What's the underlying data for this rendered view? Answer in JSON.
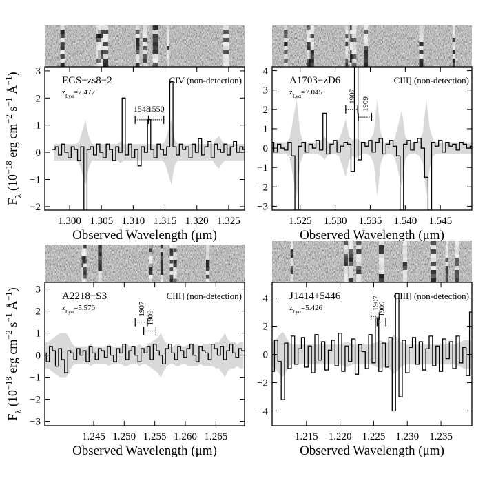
{
  "chart_data": [
    {
      "type": "step",
      "name": "EGS−zs8−2",
      "redshift": [
        {
          "text": "z"
        },
        {
          "text": "Lyα",
          "shift": "sub"
        },
        {
          "text": "=7.477"
        }
      ],
      "line_label": "CIV (non-detection)",
      "xlabel": "Observed Wavelength (μm)",
      "ylabel": [
        {
          "text": "F"
        },
        {
          "text": "λ",
          "shift": "sub"
        },
        {
          "text": " (10"
        },
        {
          "text": "−18",
          "shift": "sup"
        },
        {
          "text": " erg cm"
        },
        {
          "text": "−2",
          "shift": "sup"
        },
        {
          "text": " s"
        },
        {
          "text": "−1",
          "shift": "sup"
        },
        {
          "text": " Å"
        },
        {
          "text": "−1",
          "shift": "sup"
        },
        {
          "text": ")"
        }
      ],
      "xlim": [
        1.2961,
        1.3275
      ],
      "ylim": [
        -2.13,
        3.15
      ],
      "xticks": [
        {
          "value": 1.3,
          "label": "1.300"
        },
        {
          "value": 1.305,
          "label": "1.305"
        },
        {
          "value": 1.31,
          "label": "1.310"
        },
        {
          "value": 1.315,
          "label": "1.315"
        },
        {
          "value": 1.32,
          "label": "1.320"
        },
        {
          "value": 1.325,
          "label": "1.325"
        }
      ],
      "yticks": [
        {
          "value": -2,
          "label": "−2"
        },
        {
          "value": -1,
          "label": "−1"
        },
        0,
        1,
        2,
        3
      ],
      "marker_label_orientation": "horizontal",
      "markers": [
        {
          "label": "1548",
          "range": [
            1.3103,
            1.3124
          ],
          "y": 1.2
        },
        {
          "label": "1550",
          "range": [
            1.3124,
            1.3148
          ],
          "y": 1.2
        }
      ],
      "x": [
        1.2975,
        1.298,
        1.2985,
        1.299,
        1.2995,
        1.3,
        1.3005,
        1.301,
        1.3015,
        1.302,
        1.3025,
        1.303,
        1.3035,
        1.304,
        1.3045,
        1.305,
        1.3055,
        1.306,
        1.3065,
        1.307,
        1.3075,
        1.308,
        1.3085,
        1.309,
        1.3095,
        1.31,
        1.3105,
        1.311,
        1.3115,
        1.312,
        1.3125,
        1.313,
        1.3135,
        1.314,
        1.3145,
        1.315,
        1.3155,
        1.316,
        1.3165,
        1.317,
        1.3175,
        1.318,
        1.3185,
        1.319,
        1.3195,
        1.32,
        1.3205,
        1.321,
        1.3215,
        1.322,
        1.3225,
        1.323,
        1.3235,
        1.324,
        1.3245,
        1.325,
        1.3255,
        1.326,
        1.3265,
        1.327,
        1.3275
      ],
      "values": [
        0.1,
        0.2,
        -0.1,
        0.3,
        0,
        -0.2,
        0.2,
        0.1,
        -0.3,
        0.2,
        -2.2,
        0.1,
        0.2,
        -0.1,
        0.3,
        0,
        -0.2,
        0.3,
        0.1,
        -0.3,
        0.2,
        0,
        2,
        -0.1,
        0.3,
        -0.2,
        0.1,
        -0.5,
        0.2,
        0,
        1.2,
        0.1,
        -0.2,
        0.3,
        0.1,
        -0.1,
        0.2,
        2.6,
        0.2,
        -0.1,
        0.3,
        0.1,
        0.2,
        -0.2,
        0.3,
        0,
        0.5,
        -0.1,
        0.2,
        0.4,
        -0.2,
        0.3,
        0.1,
        0,
        0.3,
        -0.1,
        0.2,
        0.4,
        0,
        0.2,
        0.1
      ],
      "error": [
        0.3,
        0.3,
        0.3,
        0.3,
        0.3,
        0.3,
        0.3,
        0.3,
        0.4,
        0.8,
        1.2,
        0.6,
        0.3,
        0.3,
        0.3,
        0.3,
        0.3,
        0.3,
        0.3,
        0.3,
        0.3,
        0.4,
        0.3,
        0.3,
        0.3,
        0.3,
        0.3,
        0.3,
        0.3,
        0.3,
        0.3,
        0.3,
        0.3,
        0.3,
        0.3,
        0.4,
        0.8,
        1.2,
        0.5,
        0.3,
        0.3,
        0.3,
        0.3,
        0.3,
        0.3,
        0.3,
        0.3,
        0.3,
        0.3,
        0.3,
        0.3,
        0.5,
        0.6,
        0.4,
        0.3,
        0.3,
        0.3,
        0.3,
        0.3,
        0.3,
        0.3
      ],
      "color": "#000000",
      "error_color": "#d9d9d9"
    },
    {
      "type": "step",
      "name": "A1703−zD6",
      "redshift": [
        {
          "text": "z"
        },
        {
          "text": "Lyα",
          "shift": "sub"
        },
        {
          "text": "=7.045"
        }
      ],
      "line_label": "CIII] (non-detection)",
      "xlabel": "Observed Wavelength (μm)",
      "xlim": [
        1.521,
        1.5495
      ],
      "ylim": [
        -3.2,
        4.2
      ],
      "xticks": [
        {
          "value": 1.525,
          "label": "1.525"
        },
        {
          "value": 1.53,
          "label": "1.530"
        },
        {
          "value": 1.535,
          "label": "1.535"
        },
        {
          "value": 1.54,
          "label": "1.540"
        },
        {
          "value": 1.545,
          "label": "1.545"
        }
      ],
      "yticks": [
        {
          "value": -3,
          "label": "−3"
        },
        {
          "value": -2,
          "label": "−2"
        },
        {
          "value": -1,
          "label": "−1"
        },
        0,
        1,
        2,
        3,
        4
      ],
      "marker_label_orientation": "vertical",
      "markers": [
        {
          "label": "1907",
          "range": [
            1.5315,
            1.5332
          ],
          "y": 2.0
        },
        {
          "label": "1909",
          "range": [
            1.5333,
            1.5352
          ],
          "y": 1.6
        }
      ],
      "x": [
        1.5205,
        1.521,
        1.5215,
        1.522,
        1.5225,
        1.523,
        1.5235,
        1.524,
        1.5245,
        1.525,
        1.5255,
        1.526,
        1.5265,
        1.527,
        1.5275,
        1.528,
        1.5285,
        1.529,
        1.5295,
        1.53,
        1.5305,
        1.531,
        1.5315,
        1.532,
        1.5325,
        1.533,
        1.5335,
        1.534,
        1.5345,
        1.535,
        1.5355,
        1.536,
        1.5365,
        1.537,
        1.5375,
        1.538,
        1.5385,
        1.539,
        1.5395,
        1.54,
        1.5405,
        1.541,
        1.5415,
        1.542,
        1.5425,
        1.543,
        1.5435,
        1.544,
        1.5445,
        1.545,
        1.5455,
        1.546,
        1.5465,
        1.547,
        1.5475,
        1.548,
        1.5485,
        1.549,
        1.5495
      ],
      "values": [
        0.1,
        0.3,
        -0.2,
        0.2,
        0,
        -0.1,
        0.3,
        -0.4,
        -3.2,
        0.1,
        0.3,
        -0.2,
        0.2,
        0,
        0.4,
        -0.1,
        1.8,
        -0.3,
        0.2,
        0.4,
        -0.2,
        0.1,
        0.3,
        0.2,
        -1.2,
        4.2,
        -0.6,
        0.3,
        0.1,
        0.4,
        -0.2,
        0.3,
        0.5,
        -0.3,
        0.2,
        0.4,
        0.1,
        -0.4,
        -3.2,
        0.2,
        0.4,
        -0.1,
        0.3,
        0.5,
        0,
        -1.5,
        -3.2,
        0.3,
        0.1,
        0.4,
        -0.2,
        0.3,
        0.1,
        0.2,
        -0.1,
        0.3,
        0.2,
        0,
        0.1
      ],
      "error": [
        0.3,
        0.3,
        0.3,
        0.3,
        0.3,
        0.3,
        0.5,
        1.5,
        2.5,
        0.8,
        0.3,
        0.3,
        0.3,
        0.3,
        0.3,
        0.4,
        0.6,
        0.3,
        0.3,
        0.3,
        0.4,
        0.9,
        1.5,
        0.6,
        0.4,
        0.5,
        0.4,
        0.3,
        0.3,
        0.4,
        0.8,
        2.5,
        0.8,
        0.3,
        0.3,
        0.3,
        0.5,
        1.2,
        2.0,
        0.6,
        0.3,
        0.3,
        0.3,
        0.4,
        0.8,
        2.5,
        1.0,
        0.4,
        0.3,
        0.3,
        0.3,
        0.3,
        0.3,
        0.3,
        0.3,
        0.3,
        0.3,
        0.3,
        0.3
      ],
      "color": "#000000",
      "error_color": "#d9d9d9"
    },
    {
      "type": "step",
      "name": "A2218−S3",
      "redshift": [
        {
          "text": "z"
        },
        {
          "text": "Lyα",
          "shift": "sub"
        },
        {
          "text": "=5.576"
        }
      ],
      "line_label": "CIII] (non-detection)",
      "xlabel": "Observed Wavelength (μm)",
      "ylabel": [
        {
          "text": "F"
        },
        {
          "text": "λ",
          "shift": "sub"
        },
        {
          "text": " (10"
        },
        {
          "text": "−18",
          "shift": "sup"
        },
        {
          "text": " erg cm"
        },
        {
          "text": "−2",
          "shift": "sup"
        },
        {
          "text": " s"
        },
        {
          "text": "−1",
          "shift": "sup"
        },
        {
          "text": " Å"
        },
        {
          "text": "−1",
          "shift": "sup"
        },
        {
          "text": ")"
        }
      ],
      "xlim": [
        1.237,
        1.2697
      ],
      "ylim": [
        -3.2,
        3.3
      ],
      "xticks": [
        {
          "value": 1.245,
          "label": "1.245"
        },
        {
          "value": 1.25,
          "label": "1.250"
        },
        {
          "value": 1.255,
          "label": "1.255"
        },
        {
          "value": 1.26,
          "label": "1.260"
        },
        {
          "value": 1.265,
          "label": "1.265"
        }
      ],
      "yticks": [
        {
          "value": -3,
          "label": "−3"
        },
        {
          "value": -2,
          "label": "−2"
        },
        {
          "value": -1,
          "label": "−1"
        },
        0,
        1,
        2,
        3
      ],
      "marker_label_orientation": "vertical",
      "markers": [
        {
          "label": "1907",
          "range": [
            1.2518,
            1.2538
          ],
          "y": 1.5
        },
        {
          "label": "1909",
          "range": [
            1.2532,
            1.2552
          ],
          "y": 1.1
        }
      ],
      "x": [
        1.237,
        1.2375,
        1.238,
        1.2385,
        1.239,
        1.2395,
        1.24,
        1.2405,
        1.241,
        1.2415,
        1.242,
        1.2425,
        1.243,
        1.2435,
        1.244,
        1.2445,
        1.245,
        1.2455,
        1.246,
        1.2465,
        1.247,
        1.2475,
        1.248,
        1.2485,
        1.249,
        1.2495,
        1.25,
        1.2505,
        1.251,
        1.2515,
        1.252,
        1.2525,
        1.253,
        1.2535,
        1.254,
        1.2545,
        1.255,
        1.2555,
        1.256,
        1.2565,
        1.257,
        1.2575,
        1.258,
        1.2585,
        1.259,
        1.2595,
        1.26,
        1.2605,
        1.261,
        1.2615,
        1.262,
        1.2625,
        1.263,
        1.2635,
        1.264,
        1.2645,
        1.265,
        1.2655,
        1.266,
        1.2665,
        1.267,
        1.2675,
        1.268,
        1.2685,
        1.269,
        1.2695
      ],
      "values": [
        0.1,
        -0.3,
        0.4,
        0.2,
        -0.5,
        0.3,
        -0.2,
        -0.8,
        0.2,
        0.1,
        -0.2,
        0.3,
        0,
        0.2,
        -0.3,
        0.4,
        0.1,
        -0.2,
        0.3,
        0.2,
        -0.1,
        0.4,
        0,
        -0.3,
        0.3,
        0.1,
        0.5,
        -0.2,
        0.2,
        0.4,
        0,
        -0.3,
        0.3,
        0.1,
        0.4,
        -0.2,
        0.5,
        0.2,
        0,
        -0.4,
        0.3,
        0.5,
        0.1,
        -0.2,
        0.4,
        0.2,
        -0.1,
        0.3,
        0.5,
        0,
        -0.3,
        0.4,
        0.2,
        0.1,
        -0.2,
        0.5,
        0.3,
        0,
        0.4,
        -0.2,
        0.2,
        0.5,
        0.1,
        -0.1,
        0.3,
        0.2
      ],
      "error": [
        0.6,
        0.6,
        0.7,
        0.8,
        0.9,
        1.0,
        1.0,
        1.0,
        0.8,
        0.5,
        0.4,
        0.4,
        0.4,
        0.4,
        0.4,
        0.5,
        0.4,
        0.4,
        0.4,
        0.4,
        0.4,
        0.5,
        0.4,
        0.4,
        0.4,
        0.4,
        0.5,
        0.5,
        0.4,
        0.4,
        0.4,
        0.5,
        0.4,
        0.4,
        0.5,
        0.6,
        0.7,
        0.8,
        1.0,
        0.7,
        0.5,
        0.4,
        0.4,
        0.5,
        0.5,
        0.4,
        0.4,
        0.5,
        0.5,
        0.5,
        0.5,
        0.4,
        0.5,
        0.5,
        0.5,
        0.5,
        0.6,
        0.6,
        0.8,
        1.0,
        0.7,
        0.6,
        0.6,
        0.5,
        0.6,
        0.6
      ],
      "color": "#000000",
      "error_color": "#d9d9d9"
    },
    {
      "type": "step",
      "name": "J1414+5446",
      "redshift": [
        {
          "text": "z"
        },
        {
          "text": "Lyα",
          "shift": "sub"
        },
        {
          "text": "=5.426"
        }
      ],
      "line_label": "CIII] (non-detection)",
      "xlabel": "Observed Wavelength (μm)",
      "xlim": [
        1.2099,
        1.2396
      ],
      "ylim": [
        -5.05,
        5.1
      ],
      "xticks": [
        {
          "value": 1.215,
          "label": "1.215"
        },
        {
          "value": 1.22,
          "label": "1.220"
        },
        {
          "value": 1.225,
          "label": "1.225"
        },
        {
          "value": 1.23,
          "label": "1.230"
        },
        {
          "value": 1.235,
          "label": "1.235"
        }
      ],
      "yticks": [
        {
          "value": -4,
          "label": "−4"
        },
        {
          "value": -2,
          "label": "−2"
        },
        0,
        2,
        4
      ],
      "marker_label_orientation": "vertical",
      "markers": [
        {
          "label": "1907",
          "range": [
            1.2246,
            1.2258
          ],
          "y": 2.7
        },
        {
          "label": "1909",
          "range": [
            1.2255,
            1.2268
          ],
          "y": 2.3
        }
      ],
      "x": [
        1.2095,
        1.21,
        1.2105,
        1.211,
        1.2115,
        1.212,
        1.2125,
        1.213,
        1.2135,
        1.214,
        1.2145,
        1.215,
        1.2155,
        1.216,
        1.2165,
        1.217,
        1.2175,
        1.218,
        1.2185,
        1.219,
        1.2195,
        1.22,
        1.2205,
        1.221,
        1.2215,
        1.222,
        1.2225,
        1.223,
        1.2235,
        1.224,
        1.2245,
        1.225,
        1.2255,
        1.226,
        1.2265,
        1.227,
        1.2275,
        1.228,
        1.2285,
        1.229,
        1.2295,
        1.23,
        1.2305,
        1.231,
        1.2315,
        1.232,
        1.2325,
        1.233,
        1.2335,
        1.234,
        1.2345,
        1.235,
        1.2355,
        1.236,
        1.2365,
        1.237,
        1.2375,
        1.238,
        1.2385,
        1.239,
        1.2395
      ],
      "values": [
        0.5,
        -1.2,
        1.0,
        -0.5,
        -3.2,
        0.8,
        -1.0,
        1.3,
        -0.7,
        0.4,
        1.2,
        -0.9,
        0.6,
        -1.3,
        1.4,
        -0.4,
        0.9,
        -1.1,
        0.3,
        1.0,
        -0.8,
        1.5,
        -1.2,
        0.6,
        -0.5,
        1.1,
        -1.4,
        0.7,
        0.2,
        -1.0,
        1.4,
        -0.6,
        2.6,
        -1.2,
        0.8,
        -0.9,
        1.2,
        -4.0,
        4.3,
        -3.0,
        1.0,
        -1.3,
        0.5,
        1.2,
        -0.7,
        0.9,
        -1.1,
        0.4,
        1.3,
        -0.8,
        0.6,
        -1.2,
        1.1,
        -0.3,
        0.9,
        -1.0,
        1.3,
        -0.6,
        0.5,
        -1.5,
        3.0
      ],
      "error": [
        0.8,
        0.9,
        1.1,
        1.4,
        1.6,
        1.2,
        0.8,
        0.7,
        0.7,
        0.7,
        0.7,
        0.7,
        0.7,
        0.7,
        0.7,
        0.7,
        0.7,
        0.7,
        0.7,
        0.7,
        0.7,
        0.7,
        0.8,
        0.9,
        0.8,
        0.7,
        0.7,
        0.7,
        0.7,
        0.7,
        0.7,
        0.8,
        0.9,
        1.0,
        0.9,
        0.8,
        1.1,
        1.4,
        1.2,
        0.9,
        0.8,
        0.7,
        0.7,
        0.7,
        0.7,
        0.7,
        0.7,
        0.7,
        0.7,
        0.7,
        0.7,
        0.7,
        0.7,
        0.7,
        0.7,
        0.7,
        0.8,
        0.9,
        1.0,
        1.0,
        1.0
      ],
      "color": "#000000",
      "error_color": "#d9d9d9"
    }
  ]
}
